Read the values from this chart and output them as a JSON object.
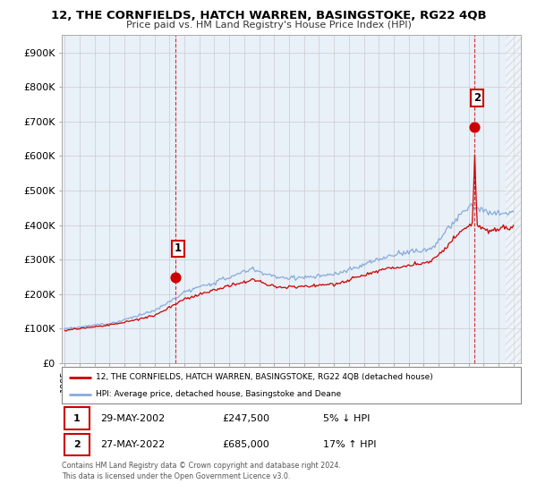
{
  "title": "12, THE CORNFIELDS, HATCH WARREN, BASINGSTOKE, RG22 4QB",
  "subtitle": "Price paid vs. HM Land Registry's House Price Index (HPI)",
  "ylabel_ticks": [
    "£0",
    "£100K",
    "£200K",
    "£300K",
    "£400K",
    "£500K",
    "£600K",
    "£700K",
    "£800K",
    "£900K"
  ],
  "ytick_vals": [
    0,
    100000,
    200000,
    300000,
    400000,
    500000,
    600000,
    700000,
    800000,
    900000
  ],
  "ylim": [
    0,
    950000
  ],
  "xlim_start": 1994.8,
  "xlim_end": 2025.5,
  "data_end": 2024.5,
  "sale1_x": 2002.41,
  "sale1_y": 247500,
  "sale1_label": "1",
  "sale2_x": 2022.41,
  "sale2_y": 685000,
  "sale2_label": "2",
  "red_line_color": "#cc0000",
  "blue_line_color": "#88aadd",
  "chart_bg_color": "#e8f0f8",
  "legend1_text": "12, THE CORNFIELDS, HATCH WARREN, BASINGSTOKE, RG22 4QB (detached house)",
  "legend2_text": "HPI: Average price, detached house, Basingstoke and Deane",
  "annotation1_date": "29-MAY-2002",
  "annotation1_price": "£247,500",
  "annotation1_hpi": "5% ↓ HPI",
  "annotation2_date": "27-MAY-2022",
  "annotation2_price": "£685,000",
  "annotation2_hpi": "17% ↑ HPI",
  "footer": "Contains HM Land Registry data © Crown copyright and database right 2024.\nThis data is licensed under the Open Government Licence v3.0.",
  "background_color": "#ffffff",
  "grid_color": "#cccccc",
  "hatch_color": "#cccccc"
}
